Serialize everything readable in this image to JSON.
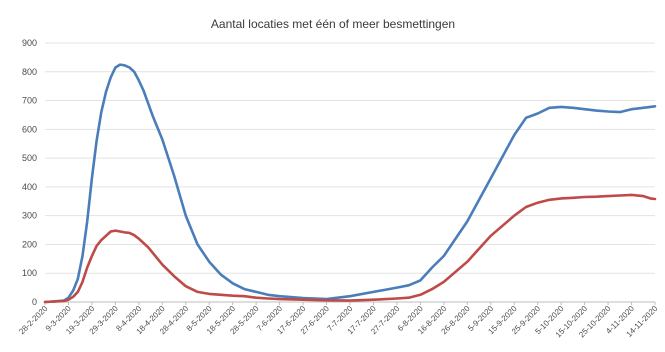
{
  "chart_data": {
    "type": "line",
    "title": "Aantal locaties met één of meer besmettingen",
    "xlabel": "",
    "ylabel": "",
    "ylim": [
      0,
      900
    ],
    "yticks": [
      "0",
      "100",
      "200",
      "300",
      "400",
      "500",
      "600",
      "700",
      "800",
      "900"
    ],
    "grid": true,
    "x_tick_labels": [
      "28-2-2020",
      "9-3-2020",
      "19-3-2020",
      "29-3-2020",
      "8-4-2020",
      "18-4-2020",
      "28-4-2020",
      "8-5-2020",
      "18-5-2020",
      "28-5-2020",
      "7-6-2020",
      "17-6-2020",
      "27-6-2020",
      "7-7-2020",
      "17-7-2020",
      "27-7-2020",
      "6-8-2020",
      "16-8-2020",
      "26-8-2020",
      "5-9-2020",
      "15-9-2020",
      "25-9-2020",
      "5-10-2020",
      "15-10-2020",
      "25-10-2020",
      "4-11-2020",
      "14-11-2020"
    ],
    "series": [
      {
        "color": "#4a7ebb",
        "x": [
          0,
          4,
          8,
          10,
          12,
          14,
          16,
          18,
          20,
          22,
          24,
          26,
          28,
          30,
          32,
          34,
          36,
          38,
          40,
          42,
          44,
          46,
          48,
          50,
          55,
          60,
          65,
          70,
          75,
          80,
          85,
          90,
          95,
          100,
          110,
          120,
          130,
          140,
          150,
          155,
          160,
          165,
          170,
          180,
          190,
          200,
          205,
          210,
          215,
          220,
          225,
          230,
          235,
          240,
          245,
          250,
          255,
          258,
          260
        ],
        "values": [
          0,
          2,
          5,
          15,
          40,
          80,
          160,
          280,
          430,
          560,
          660,
          730,
          780,
          815,
          825,
          822,
          815,
          800,
          770,
          735,
          690,
          645,
          605,
          565,
          440,
          300,
          200,
          140,
          95,
          65,
          45,
          35,
          25,
          20,
          14,
          10,
          20,
          35,
          50,
          58,
          75,
          120,
          160,
          280,
          430,
          580,
          640,
          655,
          675,
          678,
          675,
          670,
          665,
          662,
          660,
          670,
          675,
          678,
          680
        ],
        "values_note": ""
      },
      {
        "color": "#be4b48",
        "x": [
          0,
          8,
          10,
          12,
          14,
          16,
          18,
          20,
          22,
          24,
          26,
          28,
          30,
          32,
          34,
          36,
          38,
          40,
          42,
          44,
          46,
          48,
          50,
          55,
          60,
          65,
          70,
          75,
          80,
          85,
          90,
          95,
          100,
          110,
          120,
          130,
          140,
          150,
          155,
          160,
          165,
          170,
          180,
          190,
          200,
          205,
          210,
          215,
          220,
          225,
          230,
          235,
          240,
          245,
          250,
          255,
          258,
          260
        ],
        "values": [
          0,
          3,
          8,
          18,
          35,
          70,
          120,
          160,
          195,
          215,
          230,
          245,
          248,
          245,
          242,
          240,
          232,
          220,
          205,
          190,
          170,
          150,
          130,
          90,
          55,
          35,
          28,
          25,
          22,
          20,
          15,
          12,
          10,
          8,
          6,
          5,
          8,
          12,
          15,
          25,
          45,
          70,
          140,
          230,
          300,
          330,
          345,
          355,
          360,
          362,
          365,
          366,
          368,
          370,
          372,
          368,
          360,
          358
        ]
      }
    ]
  }
}
